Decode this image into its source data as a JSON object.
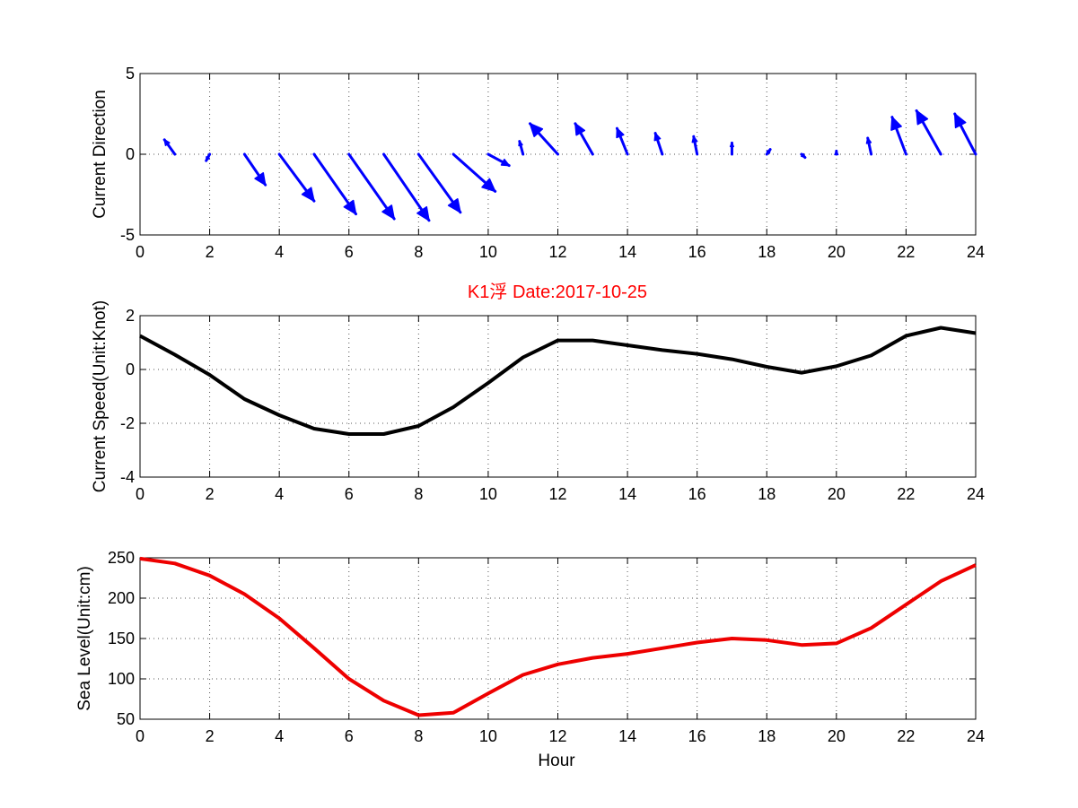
{
  "chart_data": [
    {
      "type": "quiver",
      "title": "",
      "xlabel": "",
      "ylabel": "Current Direction",
      "xlim": [
        0,
        24
      ],
      "ylim": [
        -5,
        5
      ],
      "xticks": [
        0,
        2,
        4,
        6,
        8,
        10,
        12,
        14,
        16,
        18,
        20,
        22,
        24
      ],
      "yticks": [
        -5,
        0,
        5
      ],
      "grid": true,
      "color": "#0000ff",
      "x": [
        1,
        2,
        3,
        4,
        5,
        6,
        7,
        8,
        9,
        10,
        11,
        12,
        13,
        14,
        15,
        16,
        17,
        18,
        19,
        20,
        21,
        22,
        23,
        24
      ],
      "u": [
        -0.3,
        -0.1,
        0.6,
        1.0,
        1.2,
        1.3,
        1.3,
        1.2,
        1.2,
        0.6,
        -0.1,
        -0.8,
        -0.5,
        -0.3,
        -0.2,
        -0.1,
        0.0,
        0.1,
        0.1,
        0.0,
        -0.1,
        -0.4,
        -0.7,
        -0.6
      ],
      "v": [
        0.9,
        -0.4,
        -1.9,
        -2.9,
        -3.7,
        -4.0,
        -4.1,
        -3.6,
        -2.3,
        -0.7,
        0.8,
        1.9,
        1.9,
        1.6,
        1.3,
        1.1,
        0.7,
        0.3,
        -0.2,
        0.2,
        1.0,
        2.3,
        2.7,
        2.5
      ]
    },
    {
      "type": "line",
      "title": "K1浮    Date:2017-10-25",
      "xlabel": "",
      "ylabel": "Current Speed(Unit:Knot)",
      "xlim": [
        0,
        24
      ],
      "ylim": [
        -4,
        2
      ],
      "xticks": [
        0,
        2,
        4,
        6,
        8,
        10,
        12,
        14,
        16,
        18,
        20,
        22,
        24
      ],
      "yticks": [
        -4,
        -2,
        0,
        2
      ],
      "grid": true,
      "color": "#000000",
      "title_color": "#ff0000",
      "x": [
        0,
        1,
        2,
        3,
        4,
        5,
        6,
        7,
        8,
        9,
        10,
        11,
        12,
        13,
        14,
        15,
        16,
        17,
        18,
        19,
        20,
        21,
        22,
        23,
        24
      ],
      "values": [
        1.25,
        0.55,
        -0.2,
        -1.1,
        -1.7,
        -2.2,
        -2.4,
        -2.4,
        -2.1,
        -1.4,
        -0.5,
        0.45,
        1.08,
        1.08,
        0.9,
        0.72,
        0.58,
        0.38,
        0.1,
        -0.12,
        0.12,
        0.52,
        1.25,
        1.55,
        1.35
      ]
    },
    {
      "type": "line",
      "title": "",
      "xlabel": "Hour",
      "ylabel": "Sea Level(Unit:cm)",
      "xlim": [
        0,
        24
      ],
      "ylim": [
        50,
        250
      ],
      "xticks": [
        0,
        2,
        4,
        6,
        8,
        10,
        12,
        14,
        16,
        18,
        20,
        22,
        24
      ],
      "yticks": [
        50,
        100,
        150,
        200,
        250
      ],
      "grid": true,
      "color": "#ee0000",
      "x": [
        0,
        1,
        2,
        3,
        4,
        5,
        6,
        7,
        8,
        9,
        10,
        11,
        12,
        13,
        14,
        15,
        16,
        17,
        18,
        19,
        20,
        21,
        22,
        23,
        24
      ],
      "values": [
        249,
        243,
        228,
        205,
        175,
        138,
        100,
        73,
        55,
        58,
        82,
        105,
        118,
        126,
        131,
        138,
        145,
        150,
        148,
        142,
        144,
        163,
        192,
        221,
        241
      ]
    }
  ]
}
